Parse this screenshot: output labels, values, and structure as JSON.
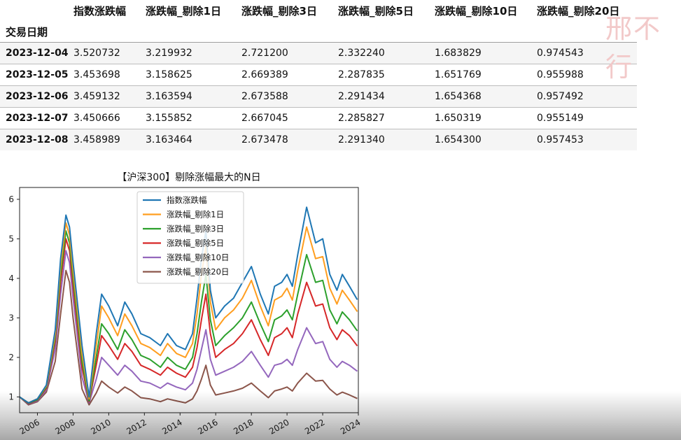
{
  "table": {
    "index_name": "交易日期",
    "columns": [
      "指数涨跌幅",
      "涨跌幅_剔除1日",
      "涨跌幅_剔除3日",
      "涨跌幅_剔除5日",
      "涨跌幅_剔除10日",
      "涨跌幅_剔除20日"
    ],
    "rows": [
      {
        "date": "2023-12-04",
        "values": [
          "3.520732",
          "3.219932",
          "2.721200",
          "2.332240",
          "1.683829",
          "0.974543"
        ]
      },
      {
        "date": "2023-12-05",
        "values": [
          "3.453698",
          "3.158625",
          "2.669389",
          "2.287835",
          "1.651769",
          "0.955988"
        ]
      },
      {
        "date": "2023-12-06",
        "values": [
          "3.459132",
          "3.163594",
          "2.673588",
          "2.291434",
          "1.654368",
          "0.957492"
        ]
      },
      {
        "date": "2023-12-07",
        "values": [
          "3.450666",
          "3.155852",
          "2.667045",
          "2.285827",
          "1.650319",
          "0.955149"
        ]
      },
      {
        "date": "2023-12-08",
        "values": [
          "3.458989",
          "3.163464",
          "2.673478",
          "2.291340",
          "1.654300",
          "0.957453"
        ]
      }
    ]
  },
  "watermark": "邢不行",
  "chart_data": {
    "type": "line",
    "title": "【沪深300】剔除涨幅最大的N日",
    "xlabel": "",
    "ylabel": "",
    "xlim": [
      2005.0,
      2024.0
    ],
    "ylim": [
      0.6,
      6.3
    ],
    "x_ticks": [
      2006,
      2008,
      2010,
      2012,
      2014,
      2016,
      2018,
      2020,
      2022,
      2024
    ],
    "y_ticks": [
      1,
      2,
      3,
      4,
      5,
      6
    ],
    "grid": false,
    "legend_position": "upper-center",
    "x": [
      2005.0,
      2005.5,
      2006.0,
      2006.5,
      2007.0,
      2007.3,
      2007.6,
      2007.8,
      2008.0,
      2008.5,
      2008.9,
      2009.3,
      2009.6,
      2010.0,
      2010.5,
      2010.9,
      2011.3,
      2011.8,
      2012.3,
      2012.9,
      2013.3,
      2013.8,
      2014.3,
      2014.7,
      2014.95,
      2015.2,
      2015.45,
      2015.7,
      2016.0,
      2016.5,
      2017.0,
      2017.5,
      2018.0,
      2018.5,
      2018.95,
      2019.3,
      2019.7,
      2020.0,
      2020.3,
      2020.6,
      2021.1,
      2021.6,
      2022.0,
      2022.4,
      2022.8,
      2023.1,
      2023.5,
      2023.94
    ],
    "series": [
      {
        "name": "指数涨跌幅",
        "color": "#1f77b4",
        "values": [
          1.0,
          0.85,
          0.95,
          1.3,
          2.7,
          4.5,
          5.6,
          5.3,
          4.4,
          2.3,
          1.0,
          2.6,
          3.6,
          3.3,
          2.8,
          3.4,
          3.1,
          2.6,
          2.5,
          2.3,
          2.6,
          2.3,
          2.2,
          2.6,
          3.5,
          4.5,
          5.2,
          3.7,
          3.0,
          3.3,
          3.5,
          3.9,
          4.3,
          3.6,
          3.1,
          3.8,
          3.9,
          4.1,
          3.8,
          4.6,
          5.8,
          4.9,
          5.0,
          4.1,
          3.7,
          4.1,
          3.8,
          3.46
        ]
      },
      {
        "name": "涨跌幅_剔除1日",
        "color": "#ff9e1f",
        "values": [
          1.0,
          0.85,
          0.95,
          1.28,
          2.6,
          4.3,
          5.4,
          5.1,
          4.2,
          2.1,
          0.95,
          2.3,
          3.3,
          3.0,
          2.55,
          3.1,
          2.8,
          2.35,
          2.25,
          2.05,
          2.35,
          2.1,
          2.0,
          2.35,
          3.1,
          4.1,
          4.8,
          3.4,
          2.7,
          3.0,
          3.2,
          3.5,
          3.95,
          3.3,
          2.8,
          3.45,
          3.55,
          3.75,
          3.45,
          4.2,
          5.3,
          4.5,
          4.55,
          3.75,
          3.35,
          3.7,
          3.45,
          3.16
        ]
      },
      {
        "name": "涨跌幅_剔除3日",
        "color": "#2ca02c",
        "values": [
          1.0,
          0.84,
          0.93,
          1.25,
          2.5,
          4.1,
          5.2,
          4.9,
          4.0,
          1.9,
          0.9,
          2.0,
          2.85,
          2.6,
          2.2,
          2.7,
          2.45,
          2.05,
          1.95,
          1.75,
          2.0,
          1.8,
          1.7,
          2.0,
          2.6,
          3.4,
          4.1,
          2.95,
          2.3,
          2.55,
          2.75,
          3.0,
          3.4,
          2.85,
          2.4,
          2.95,
          3.05,
          3.2,
          2.95,
          3.6,
          4.6,
          3.9,
          3.95,
          3.2,
          2.85,
          3.15,
          2.95,
          2.67
        ]
      },
      {
        "name": "涨跌幅_剔除5日",
        "color": "#d62728",
        "values": [
          1.0,
          0.83,
          0.92,
          1.22,
          2.4,
          3.9,
          5.0,
          4.7,
          3.8,
          1.75,
          0.88,
          1.8,
          2.55,
          2.3,
          1.95,
          2.35,
          2.15,
          1.8,
          1.7,
          1.55,
          1.75,
          1.6,
          1.5,
          1.75,
          2.25,
          2.95,
          3.6,
          2.6,
          2.0,
          2.2,
          2.35,
          2.6,
          2.95,
          2.45,
          2.05,
          2.5,
          2.6,
          2.75,
          2.5,
          3.1,
          3.9,
          3.3,
          3.35,
          2.75,
          2.45,
          2.7,
          2.55,
          2.29
        ]
      },
      {
        "name": "涨跌幅_剔除10日",
        "color": "#9467bd",
        "values": [
          1.0,
          0.82,
          0.9,
          1.18,
          2.2,
          3.6,
          4.7,
          4.4,
          3.5,
          1.5,
          0.85,
          1.45,
          2.0,
          1.8,
          1.55,
          1.8,
          1.65,
          1.4,
          1.35,
          1.22,
          1.35,
          1.25,
          1.18,
          1.35,
          1.7,
          2.2,
          2.7,
          1.95,
          1.55,
          1.65,
          1.75,
          1.9,
          2.15,
          1.8,
          1.5,
          1.8,
          1.85,
          1.95,
          1.8,
          2.2,
          2.75,
          2.35,
          2.4,
          1.95,
          1.75,
          1.9,
          1.8,
          1.65
        ]
      },
      {
        "name": "涨跌幅_剔除20日",
        "color": "#8c564b",
        "values": [
          1.0,
          0.8,
          0.88,
          1.12,
          1.9,
          3.1,
          4.2,
          3.9,
          3.0,
          1.2,
          0.8,
          1.1,
          1.4,
          1.25,
          1.1,
          1.25,
          1.15,
          0.98,
          0.95,
          0.88,
          0.95,
          0.9,
          0.85,
          0.95,
          1.15,
          1.45,
          1.8,
          1.3,
          1.05,
          1.1,
          1.15,
          1.22,
          1.35,
          1.15,
          0.98,
          1.15,
          1.2,
          1.25,
          1.15,
          1.35,
          1.6,
          1.4,
          1.42,
          1.2,
          1.05,
          1.12,
          1.05,
          0.96
        ]
      }
    ]
  }
}
